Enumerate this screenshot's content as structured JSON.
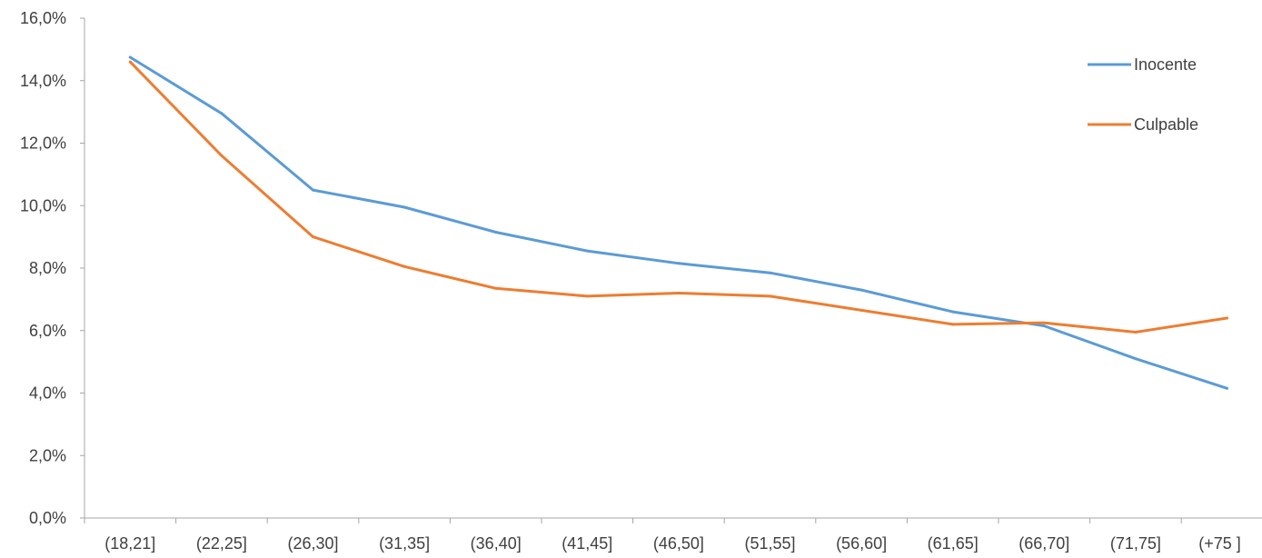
{
  "chart_data": {
    "type": "line",
    "title": "",
    "xlabel": "",
    "ylabel": "",
    "categories": [
      "(18,21]",
      "(22,25]",
      "(26,30]",
      "(31,35]",
      "(36,40]",
      "(41,45]",
      "(46,50]",
      "(51,55]",
      "(56,60]",
      "(61,65]",
      "(66,70]",
      "(71,75]",
      "(+75  ]"
    ],
    "ylim": [
      0,
      16
    ],
    "yticks": [
      0,
      2,
      4,
      6,
      8,
      10,
      12,
      14,
      16
    ],
    "ytick_labels": [
      "0,0%",
      "2,0%",
      "4,0%",
      "6,0%",
      "8,0%",
      "10,0%",
      "12,0%",
      "14,0%",
      "16,0%"
    ],
    "y_unit": "percent",
    "grid": false,
    "legend_position": "top-right",
    "series": [
      {
        "name": "Inocente",
        "color": "#5B9BD5",
        "values": [
          14.75,
          12.95,
          10.5,
          9.95,
          9.15,
          8.55,
          8.15,
          7.85,
          7.3,
          6.6,
          6.15,
          5.1,
          4.15
        ]
      },
      {
        "name": "Culpable",
        "color": "#ED7D31",
        "values": [
          14.6,
          11.6,
          9.0,
          8.05,
          7.35,
          7.1,
          7.2,
          7.1,
          6.65,
          6.2,
          6.25,
          5.95,
          6.4
        ]
      }
    ]
  }
}
